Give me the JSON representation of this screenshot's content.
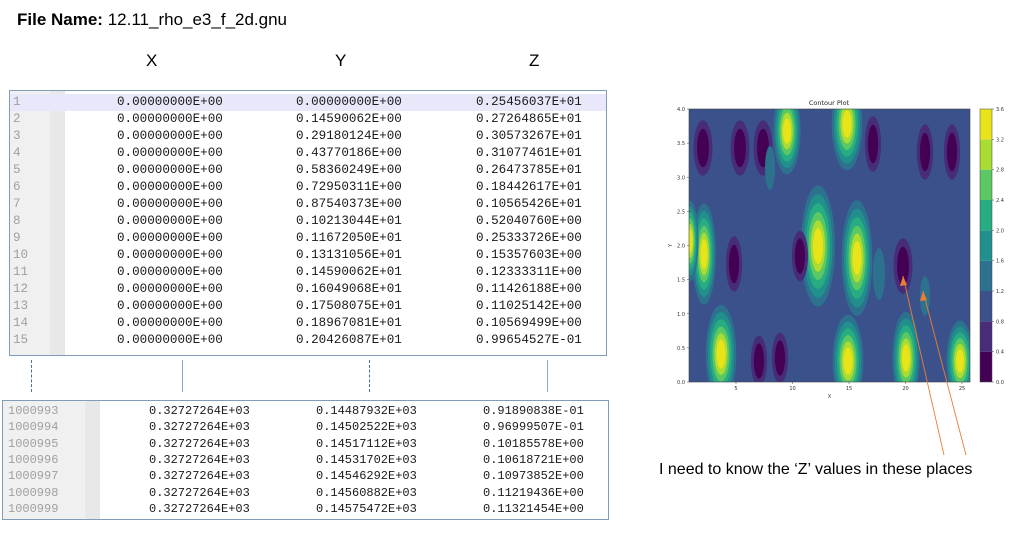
{
  "title": {
    "label": "File Name:",
    "value": "12.11_rho_e3_f_2d.gnu"
  },
  "headers": {
    "x": "X",
    "y": "Y",
    "z": "Z"
  },
  "top_rows": [
    {
      "n": "1",
      "x": "0.00000000E+00",
      "y": "0.00000000E+00",
      "z": "0.25456037E+01"
    },
    {
      "n": "2",
      "x": "0.00000000E+00",
      "y": "0.14590062E+00",
      "z": "0.27264865E+01"
    },
    {
      "n": "3",
      "x": "0.00000000E+00",
      "y": "0.29180124E+00",
      "z": "0.30573267E+01"
    },
    {
      "n": "4",
      "x": "0.00000000E+00",
      "y": "0.43770186E+00",
      "z": "0.31077461E+01"
    },
    {
      "n": "5",
      "x": "0.00000000E+00",
      "y": "0.58360249E+00",
      "z": "0.26473785E+01"
    },
    {
      "n": "6",
      "x": "0.00000000E+00",
      "y": "0.72950311E+00",
      "z": "0.18442617E+01"
    },
    {
      "n": "7",
      "x": "0.00000000E+00",
      "y": "0.87540373E+00",
      "z": "0.10565426E+01"
    },
    {
      "n": "8",
      "x": "0.00000000E+00",
      "y": "0.10213044E+01",
      "z": "0.52040760E+00"
    },
    {
      "n": "9",
      "x": "0.00000000E+00",
      "y": "0.11672050E+01",
      "z": "0.25333726E+00"
    },
    {
      "n": "10",
      "x": "0.00000000E+00",
      "y": "0.13131056E+01",
      "z": "0.15357603E+00"
    },
    {
      "n": "11",
      "x": "0.00000000E+00",
      "y": "0.14590062E+01",
      "z": "0.12333311E+00"
    },
    {
      "n": "12",
      "x": "0.00000000E+00",
      "y": "0.16049068E+01",
      "z": "0.11426188E+00"
    },
    {
      "n": "13",
      "x": "0.00000000E+00",
      "y": "0.17508075E+01",
      "z": "0.11025142E+00"
    },
    {
      "n": "14",
      "x": "0.00000000E+00",
      "y": "0.18967081E+01",
      "z": "0.10569499E+00"
    },
    {
      "n": "15",
      "x": "0.00000000E+00",
      "y": "0.20426087E+01",
      "z": "0.99654527E-01"
    }
  ],
  "bottom_rows": [
    {
      "n": "1000993",
      "x": "0.32727264E+03",
      "y": "0.14487932E+03",
      "z": "0.91890838E-01"
    },
    {
      "n": "1000994",
      "x": "0.32727264E+03",
      "y": "0.14502522E+03",
      "z": "0.96999507E-01"
    },
    {
      "n": "1000995",
      "x": "0.32727264E+03",
      "y": "0.14517112E+03",
      "z": "0.10185578E+00"
    },
    {
      "n": "1000996",
      "x": "0.32727264E+03",
      "y": "0.14531702E+03",
      "z": "0.10618721E+00"
    },
    {
      "n": "1000997",
      "x": "0.32727264E+03",
      "y": "0.14546292E+03",
      "z": "0.10973852E+00"
    },
    {
      "n": "1000998",
      "x": "0.32727264E+03",
      "y": "0.14560882E+03",
      "z": "0.11219436E+00"
    },
    {
      "n": "1000999",
      "x": "0.32727264E+03",
      "y": "0.14575472E+03",
      "z": "0.11321454E+00"
    }
  ],
  "plot": {
    "title": "Contour Plot",
    "xlabel": "X",
    "ylabel": "Y",
    "xticks": [
      "5",
      "10",
      "15",
      "20",
      "25"
    ],
    "yticks": [
      "0.0",
      "0.5",
      "1.0",
      "1.5",
      "2.0",
      "2.5",
      "3.0",
      "3.5",
      "4.0"
    ],
    "colorbar_ticks": [
      "0.0",
      "0.4",
      "0.8",
      "1.2",
      "1.6",
      "2.0",
      "2.4",
      "2.8",
      "3.2",
      "3.6"
    ],
    "colors": [
      "#440154",
      "#472c7a",
      "#3b518b",
      "#2c718e",
      "#21908d",
      "#27ad81",
      "#5cc863",
      "#aadc32",
      "#e8e419"
    ],
    "background_color": "#3b518b"
  },
  "annotation": "I need to know the ‘Z’ values in these places",
  "arrow_color": "#ed7d31"
}
